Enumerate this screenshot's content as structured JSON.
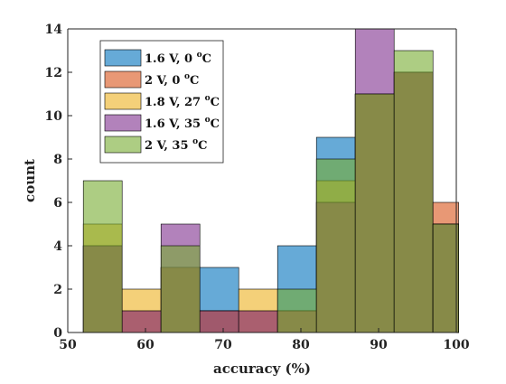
{
  "chart_data": {
    "type": "histogram",
    "xlabel": "accuracy (%)",
    "ylabel": "count",
    "xlim": [
      50,
      100
    ],
    "ylim": [
      0,
      14
    ],
    "xticks": [
      50,
      60,
      70,
      80,
      90,
      100
    ],
    "yticks": [
      0,
      2,
      4,
      6,
      8,
      10,
      12,
      14
    ],
    "grid": false,
    "legend_position": "top-left",
    "bin_edges": [
      52,
      57,
      62,
      67,
      72,
      77,
      82,
      87,
      92,
      97
    ],
    "series": [
      {
        "name": "1.6 V, 0 °C",
        "legend": {
          "main": "1.6 V, 0 ",
          "sup": "o",
          "unit": "C"
        },
        "color": "#0072BD",
        "values": [
          4,
          0,
          3,
          3,
          0,
          4,
          9,
          11,
          12
        ]
      },
      {
        "name": "2 V, 0 °C",
        "legend": {
          "main": "2 V, 0 ",
          "sup": "o",
          "unit": "C"
        },
        "color": "#D95319",
        "values": [
          4,
          1,
          3,
          1,
          1,
          1,
          6,
          11,
          12
        ]
      },
      {
        "name": "1.8 V, 27 °C",
        "legend": {
          "main": "1.8 V, 27 ",
          "sup": "o",
          "unit": "C"
        },
        "color": "#EDB120",
        "values": [
          5,
          2,
          3,
          1,
          2,
          1,
          7,
          11,
          12
        ]
      },
      {
        "name": "1.6 V, 35 °C",
        "legend": {
          "main": "1.6 V, 35 ",
          "sup": "o",
          "unit": "C"
        },
        "color": "#7E2F8E",
        "values": [
          4,
          1,
          5,
          1,
          1,
          1,
          6,
          14,
          12
        ]
      },
      {
        "name": "2 V, 35 °C",
        "legend": {
          "main": "2 V, 35 ",
          "sup": "o",
          "unit": "C"
        },
        "color": "#77AC30",
        "values": [
          7,
          0,
          4,
          0,
          0,
          2,
          8,
          11,
          13
        ]
      }
    ],
    "extra_bin": {
      "range": [
        97,
        100
      ],
      "note": "last visible bin"
    }
  }
}
